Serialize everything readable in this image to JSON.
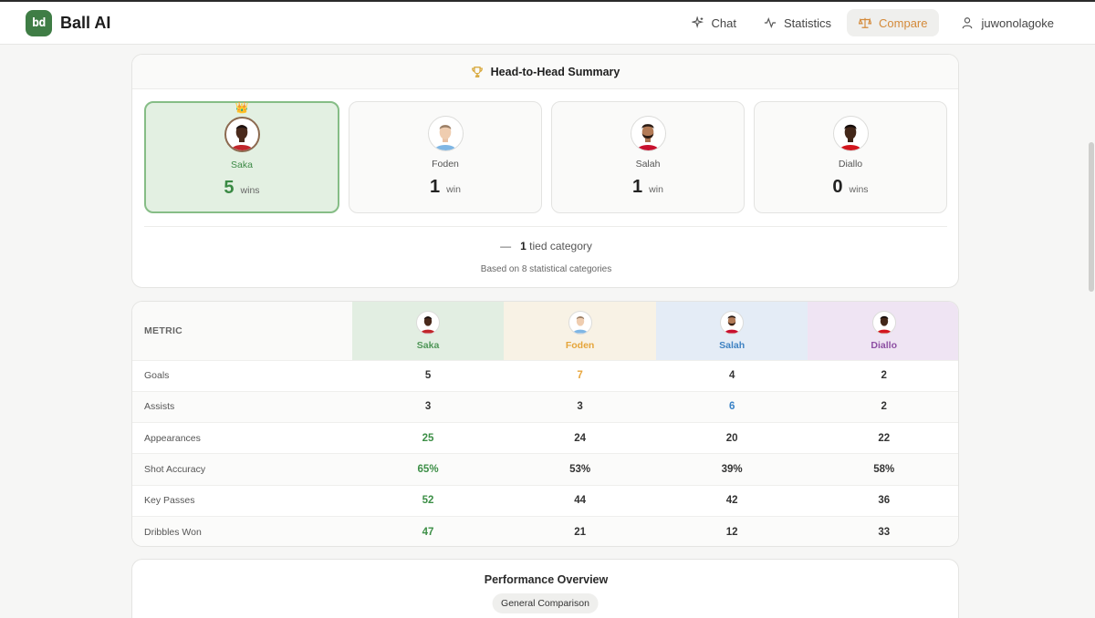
{
  "app": {
    "logo_text": "bd",
    "title": "Ball AI"
  },
  "nav": {
    "chat": "Chat",
    "statistics": "Statistics",
    "compare": "Compare",
    "username": "juwonolagoke"
  },
  "colors": {
    "brand_green": "#3f7d45",
    "accent_orange": "#d48a3a",
    "saka": "#4f9658",
    "foden": "#e5a53a",
    "salah": "#3f82c2",
    "diallo": "#8d4fa3"
  },
  "summary": {
    "title": "Head-to-Head Summary",
    "players": [
      {
        "name": "Saka",
        "wins": "5",
        "wins_label": "wins",
        "winner": true,
        "crown": "👑"
      },
      {
        "name": "Foden",
        "wins": "1",
        "wins_label": "win",
        "winner": false
      },
      {
        "name": "Salah",
        "wins": "1",
        "wins_label": "win",
        "winner": false
      },
      {
        "name": "Diallo",
        "wins": "0",
        "wins_label": "wins",
        "winner": false
      }
    ],
    "tied_prefix": "—",
    "tied_count": "1",
    "tied_label": "tied category",
    "basis": "Based on 8 statistical categories"
  },
  "table": {
    "metric_header": "METRIC",
    "players": [
      "Saka",
      "Foden",
      "Salah",
      "Diallo"
    ],
    "rows": [
      {
        "metric": "Goals",
        "values": [
          "5",
          "7",
          "4",
          "2"
        ],
        "best": 1
      },
      {
        "metric": "Assists",
        "values": [
          "3",
          "3",
          "6",
          "2"
        ],
        "best": 2
      },
      {
        "metric": "Appearances",
        "values": [
          "25",
          "24",
          "20",
          "22"
        ],
        "best": 0
      },
      {
        "metric": "Shot Accuracy",
        "values": [
          "65%",
          "53%",
          "39%",
          "58%"
        ],
        "best": 0
      },
      {
        "metric": "Key Passes",
        "values": [
          "52",
          "44",
          "42",
          "36"
        ],
        "best": 0
      },
      {
        "metric": "Dribbles Won",
        "values": [
          "47",
          "21",
          "12",
          "33"
        ],
        "best": 0
      }
    ]
  },
  "performance": {
    "title": "Performance Overview",
    "tab": "General Comparison"
  }
}
